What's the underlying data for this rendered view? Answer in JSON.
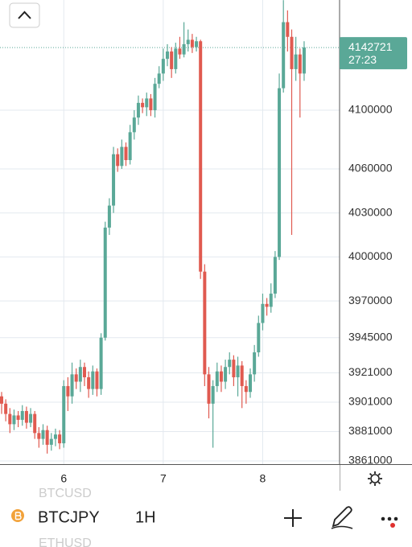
{
  "chart_data": {
    "type": "candlestick",
    "categories": [
      null,
      null,
      null,
      null,
      null,
      null,
      null,
      null,
      null,
      null,
      null,
      null,
      null,
      null,
      null,
      "6",
      null,
      null,
      null,
      null,
      null,
      null,
      null,
      null,
      null,
      null,
      null,
      null,
      null,
      null,
      null,
      null,
      null,
      null,
      null,
      null,
      null,
      null,
      null,
      "7",
      null,
      null,
      null,
      null,
      null,
      null,
      null,
      null,
      null,
      null,
      null,
      null,
      null,
      null,
      null,
      null,
      null,
      null,
      null,
      null,
      null,
      null,
      null,
      "8",
      null,
      null,
      null,
      null,
      null,
      null,
      null,
      null,
      null,
      null
    ],
    "open": [
      3905000,
      3900000,
      3893000,
      3886000,
      3892000,
      3889000,
      3895000,
      3887000,
      3893000,
      3880000,
      3876000,
      3882000,
      3872000,
      3876000,
      3879000,
      3873000,
      3912000,
      3905000,
      3920000,
      3915000,
      3925000,
      3918000,
      3910000,
      3922000,
      3910000,
      3945000,
      4020000,
      4035000,
      4070000,
      4062000,
      4075000,
      4066000,
      4085000,
      4095000,
      4105000,
      4102000,
      4108000,
      4100000,
      4118000,
      4125000,
      4135000,
      4140000,
      4128000,
      4142000,
      4138000,
      4145000,
      4148000,
      4143000,
      4147000,
      3990000,
      3920000,
      3900000,
      3912000,
      3922000,
      3915000,
      3925000,
      3930000,
      3918000,
      3926000,
      3912000,
      3908000,
      3920000,
      3935000,
      3955000,
      3968000,
      3966000,
      3975000,
      4000000,
      4115000,
      4160000,
      4150000,
      4128000,
      4138000,
      4125000
    ],
    "high": [
      3908000,
      3903000,
      3897000,
      3896000,
      3895000,
      3899000,
      3898000,
      3897000,
      3895000,
      3884000,
      3886000,
      3885000,
      3880000,
      3883000,
      3882000,
      3916000,
      3918000,
      3928000,
      3924000,
      3930000,
      3928000,
      3922000,
      3926000,
      3924000,
      3948000,
      4024000,
      4040000,
      4075000,
      4074000,
      4080000,
      4078000,
      4090000,
      4100000,
      4110000,
      4108000,
      4112000,
      4111000,
      4122000,
      4130000,
      4142000,
      4145000,
      4143000,
      4146000,
      4150000,
      4160000,
      4155000,
      4152000,
      4150000,
      4148000,
      3995000,
      3925000,
      3916000,
      3928000,
      3926000,
      3930000,
      3935000,
      3933000,
      3932000,
      3929000,
      3916000,
      3924000,
      3940000,
      3960000,
      3975000,
      3972000,
      3982000,
      4004000,
      4125000,
      4175000,
      4168000,
      4155000,
      4150000,
      4142000,
      4147000
    ],
    "low": [
      3893000,
      3888000,
      3880000,
      3882000,
      3884000,
      3885000,
      3883000,
      3884000,
      3876000,
      3870000,
      3872000,
      3866000,
      3868000,
      3871000,
      3869000,
      3870000,
      3895000,
      3900000,
      3910000,
      3908000,
      3912000,
      3904000,
      3906000,
      3905000,
      3906000,
      3943000,
      4015000,
      4030000,
      4058000,
      4060000,
      4062000,
      4063000,
      4080000,
      4090000,
      4098000,
      4096000,
      4096000,
      4095000,
      4115000,
      4120000,
      4130000,
      4122000,
      4125000,
      4135000,
      4136000,
      4140000,
      4139000,
      4140000,
      3985000,
      3912000,
      3890000,
      3870000,
      3908000,
      3908000,
      3910000,
      3920000,
      3912000,
      3905000,
      3897000,
      3900000,
      3904000,
      3915000,
      3932000,
      3950000,
      3960000,
      3962000,
      3972000,
      3998000,
      4112000,
      4140000,
      4015000,
      4120000,
      4095000,
      4120000
    ],
    "close": [
      3900000,
      3893000,
      3886000,
      3892000,
      3889000,
      3895000,
      3887000,
      3893000,
      3880000,
      3876000,
      3882000,
      3872000,
      3876000,
      3879000,
      3873000,
      3912000,
      3905000,
      3920000,
      3915000,
      3925000,
      3918000,
      3910000,
      3922000,
      3910000,
      3945000,
      4020000,
      4035000,
      4070000,
      4062000,
      4075000,
      4066000,
      4085000,
      4095000,
      4105000,
      4102000,
      4108000,
      4100000,
      4118000,
      4125000,
      4135000,
      4140000,
      4128000,
      4142000,
      4138000,
      4145000,
      4148000,
      4143000,
      4147000,
      3990000,
      3920000,
      3900000,
      3912000,
      3922000,
      3915000,
      3925000,
      3930000,
      3918000,
      3926000,
      3912000,
      3908000,
      3920000,
      3935000,
      3955000,
      3968000,
      3966000,
      3975000,
      4000000,
      4115000,
      4160000,
      4150000,
      4128000,
      4138000,
      4125000,
      4142721
    ],
    "up_color": "#5aa897",
    "down_color": "#e05a50",
    "ylim": [
      3858800,
      4175100
    ],
    "yticks": [
      4100000,
      4060000,
      4030000,
      4000000,
      3970000,
      3945000,
      3921000,
      3901000,
      3881000,
      3861000
    ],
    "grid": true,
    "countdown": "27:23"
  },
  "ui": {
    "symbols": [
      "BTCUSD",
      "BTCJPY",
      "ETHUSD"
    ],
    "interval": "1H"
  }
}
